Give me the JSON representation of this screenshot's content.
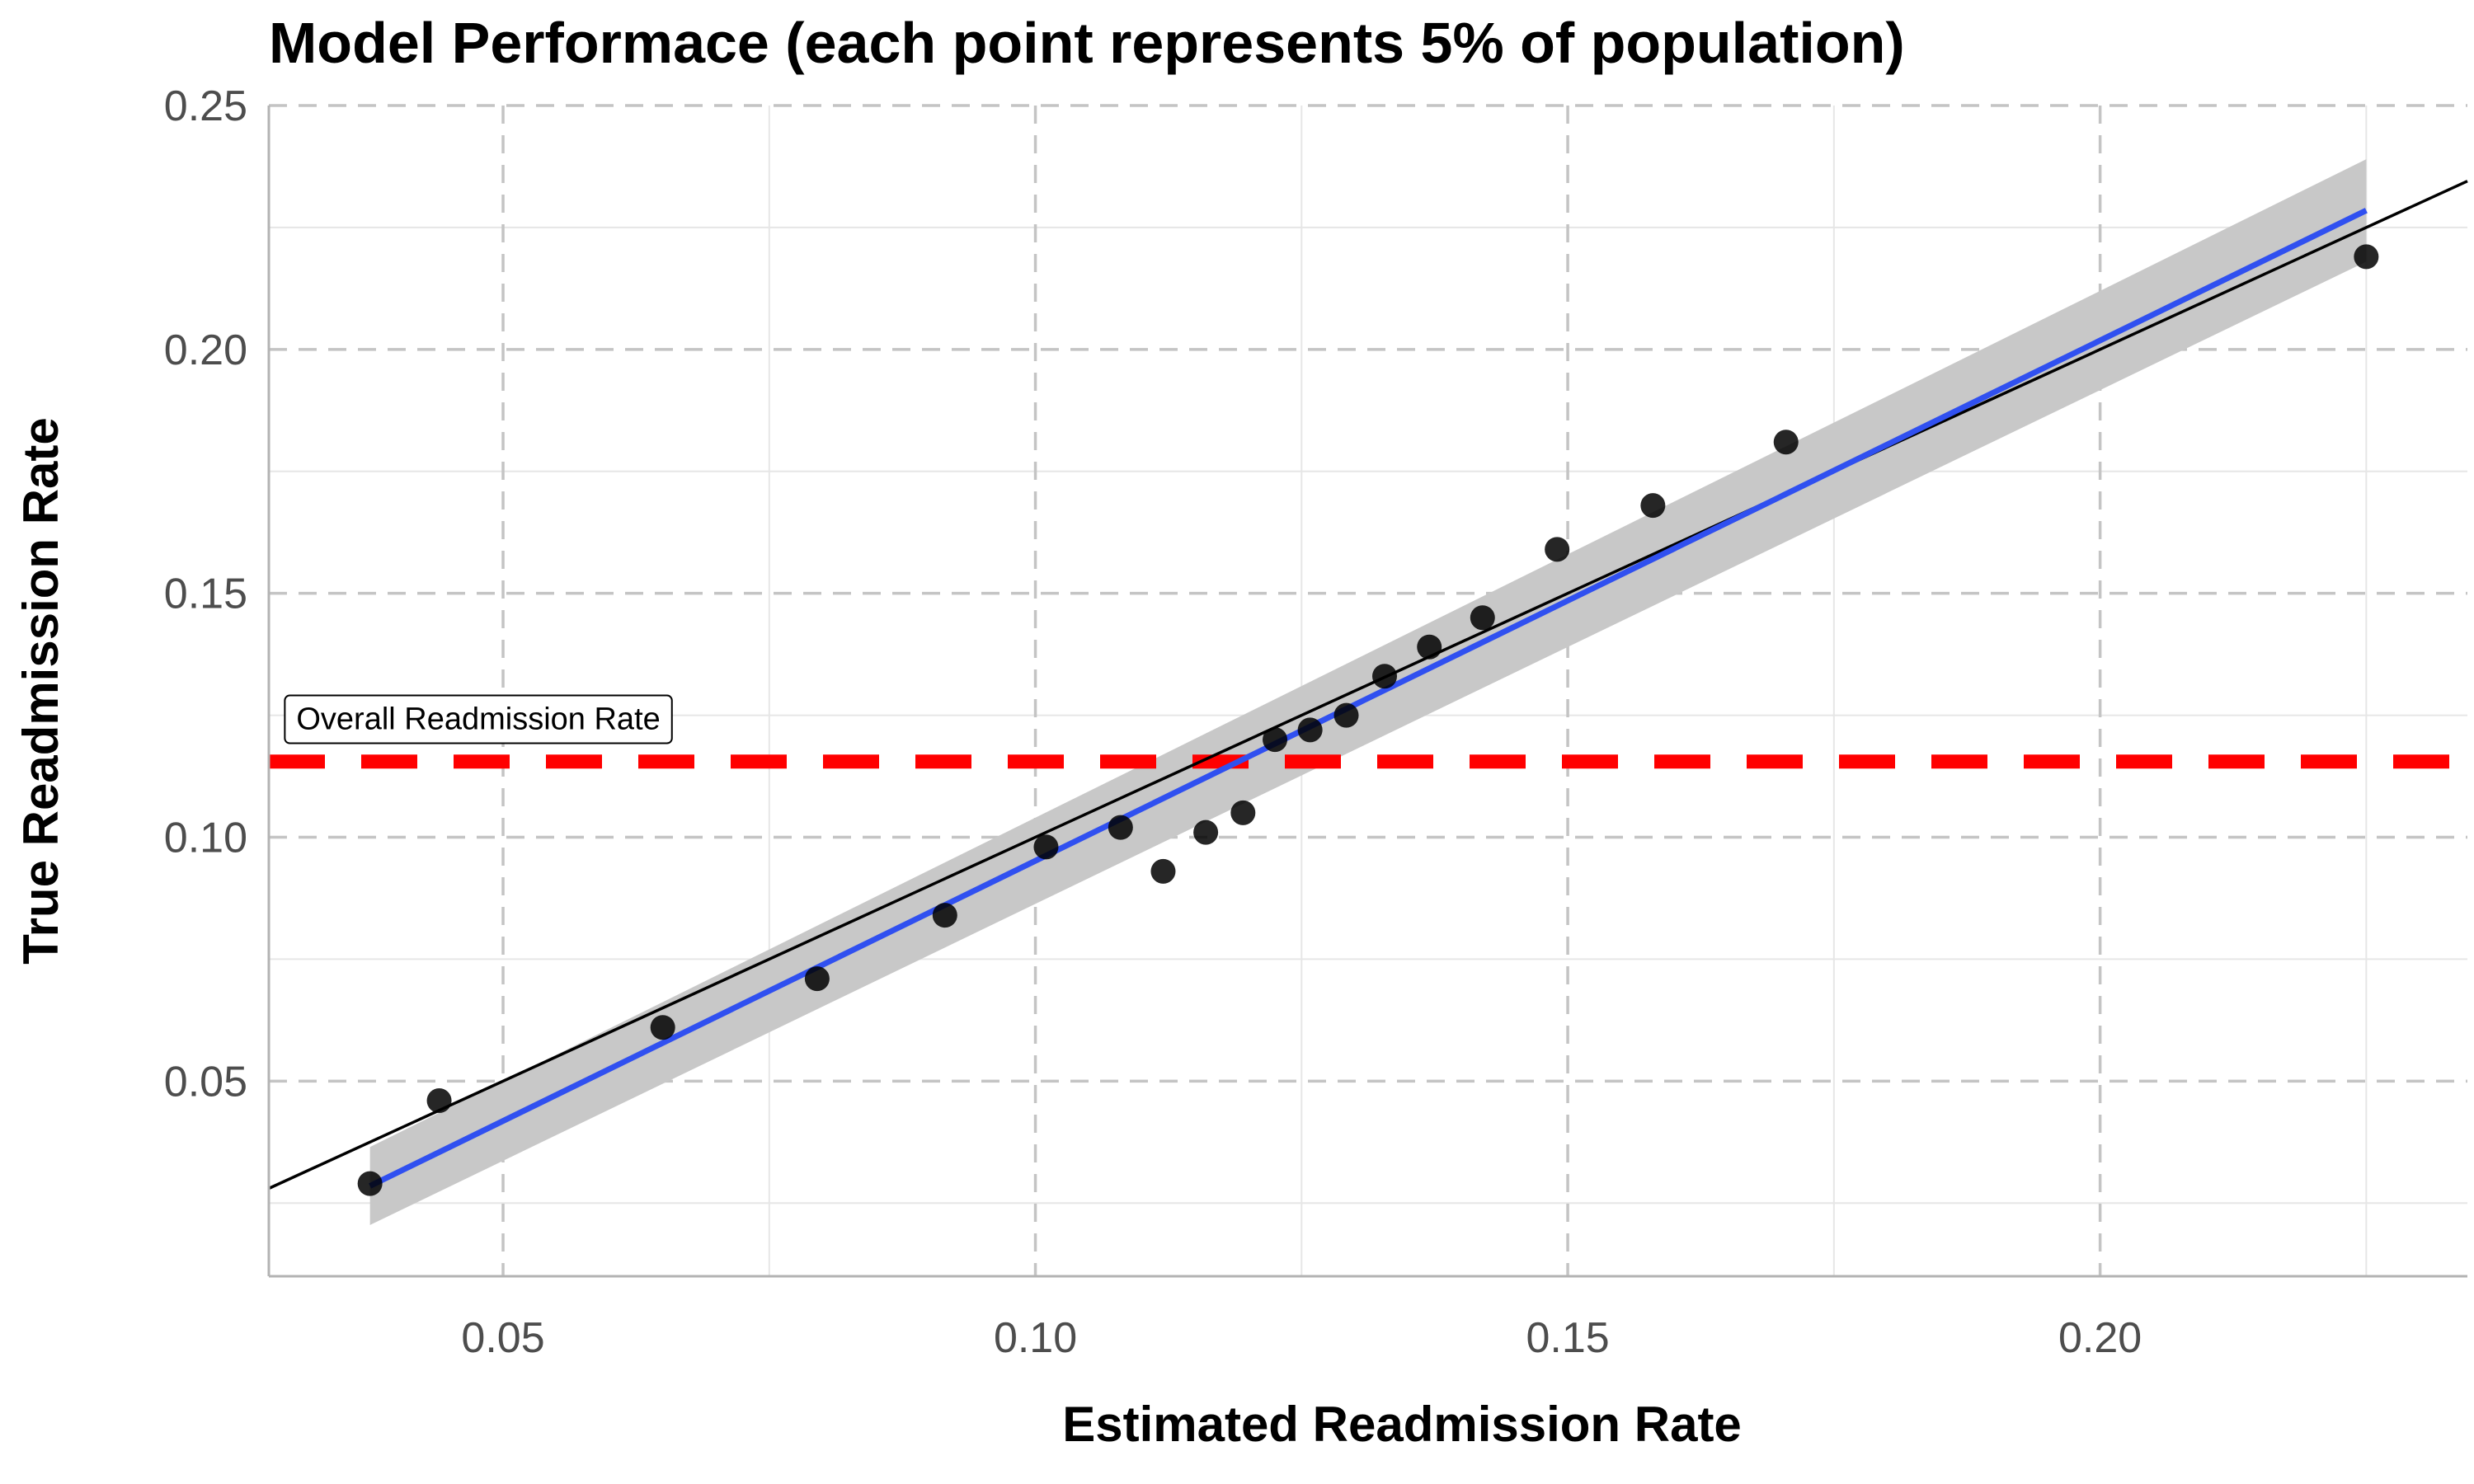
{
  "chart_data": {
    "type": "scatter",
    "title": "Model Performace (each point represents 5% of population)",
    "xlabel": "Estimated Readmission Rate",
    "ylabel": "True Readmission Rate",
    "xlim": [
      0.028,
      0.2345
    ],
    "ylim": [
      0.01,
      0.25
    ],
    "x_ticks": [
      0.05,
      0.1,
      0.15,
      0.2
    ],
    "x_tick_labels": [
      "0.05",
      "0.10",
      "0.15",
      "0.20"
    ],
    "y_ticks": [
      0.05,
      0.1,
      0.15,
      0.2,
      0.25
    ],
    "y_tick_labels": [
      "0.05",
      "0.10",
      "0.15",
      "0.20",
      "0.25"
    ],
    "grid": true,
    "points": [
      {
        "x": 0.0375,
        "y": 0.029
      },
      {
        "x": 0.044,
        "y": 0.046
      },
      {
        "x": 0.065,
        "y": 0.061
      },
      {
        "x": 0.0795,
        "y": 0.071
      },
      {
        "x": 0.0915,
        "y": 0.084
      },
      {
        "x": 0.101,
        "y": 0.098
      },
      {
        "x": 0.108,
        "y": 0.102
      },
      {
        "x": 0.112,
        "y": 0.093
      },
      {
        "x": 0.116,
        "y": 0.101
      },
      {
        "x": 0.1195,
        "y": 0.105
      },
      {
        "x": 0.1225,
        "y": 0.12
      },
      {
        "x": 0.1258,
        "y": 0.122
      },
      {
        "x": 0.1292,
        "y": 0.125
      },
      {
        "x": 0.1328,
        "y": 0.133
      },
      {
        "x": 0.137,
        "y": 0.139
      },
      {
        "x": 0.142,
        "y": 0.145
      },
      {
        "x": 0.149,
        "y": 0.159
      },
      {
        "x": 0.158,
        "y": 0.168
      },
      {
        "x": 0.1705,
        "y": 0.181
      },
      {
        "x": 0.225,
        "y": 0.219
      }
    ],
    "reference_line": {
      "slope": 1,
      "intercept": 0,
      "color": "#000000"
    },
    "fit_line": {
      "x": [
        0.0375,
        0.225
      ],
      "y": [
        0.0285,
        0.2285
      ],
      "color": "#3050f0",
      "ci_lower": [
        0.0205,
        0.218
      ],
      "ci_upper": [
        0.0365,
        0.239
      ],
      "ci_color": "#c8c8c8"
    },
    "hline": {
      "y": 0.1155,
      "color": "#ff0000",
      "style": "dashed"
    },
    "annotation": {
      "text": "Overall Readmission Rate",
      "x": 0.0295,
      "y": 0.1245
    }
  }
}
